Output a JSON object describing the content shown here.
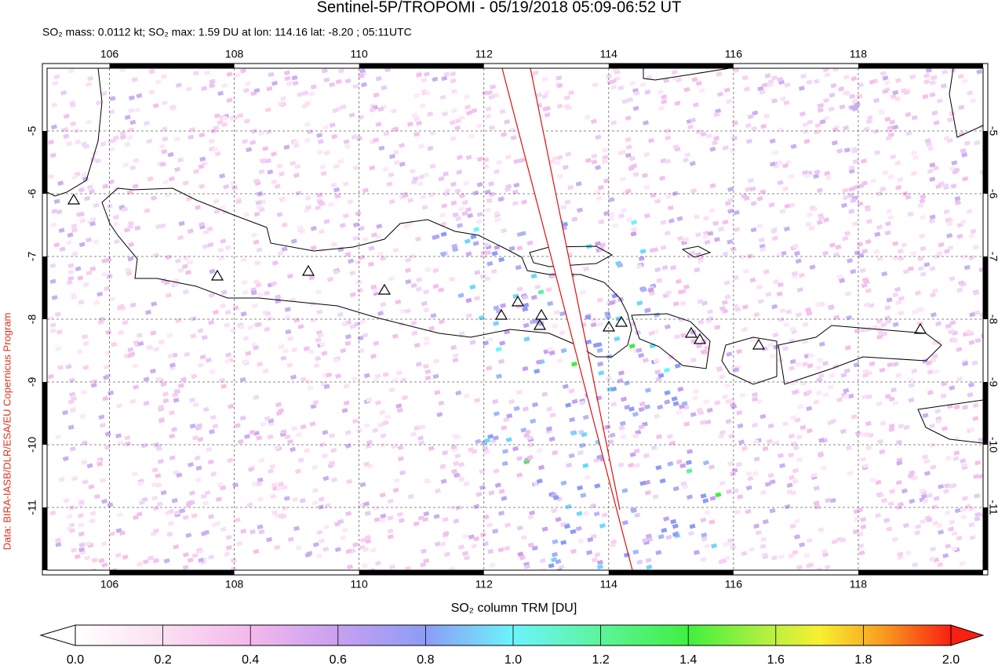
{
  "chart_data": {
    "type": "map",
    "title": "Sentinel-5P/TROPOMI - 05/19/2018 05:09-06:52 UT",
    "subtitle": "SO₂ mass: 0.0112 kt; SO₂ max: 1.59 DU at lon: 114.16 lat: -8.20 ; 05:11UTC",
    "credit": "Data: BIRA-IASB/DLR/ESA/EU Copernicus Program",
    "xlim": [
      105,
      120
    ],
    "ylim": [
      -12,
      -4
    ],
    "xticks": [
      106,
      108,
      110,
      112,
      114,
      116,
      118
    ],
    "yticks": [
      -5,
      -6,
      -7,
      -8,
      -9,
      -10,
      -11
    ],
    "grid": true,
    "colorbar": {
      "label": "SO₂ column TRM [DU]",
      "lim": [
        0,
        2
      ],
      "ticks": [
        {
          "value": 0,
          "label": "0.0"
        },
        {
          "value": 0.2,
          "label": "0.2"
        },
        {
          "value": 0.4,
          "label": "0.4"
        },
        {
          "value": 0.6,
          "label": "0.6"
        },
        {
          "value": 0.8,
          "label": "0.8"
        },
        {
          "value": 1,
          "label": "1.0"
        },
        {
          "value": 1.2,
          "label": "1.2"
        },
        {
          "value": 1.4,
          "label": "1.4"
        },
        {
          "value": 1.6,
          "label": "1.6"
        },
        {
          "value": 1.8,
          "label": "1.8"
        },
        {
          "value": 2,
          "label": "2.0"
        }
      ]
    }
  }
}
